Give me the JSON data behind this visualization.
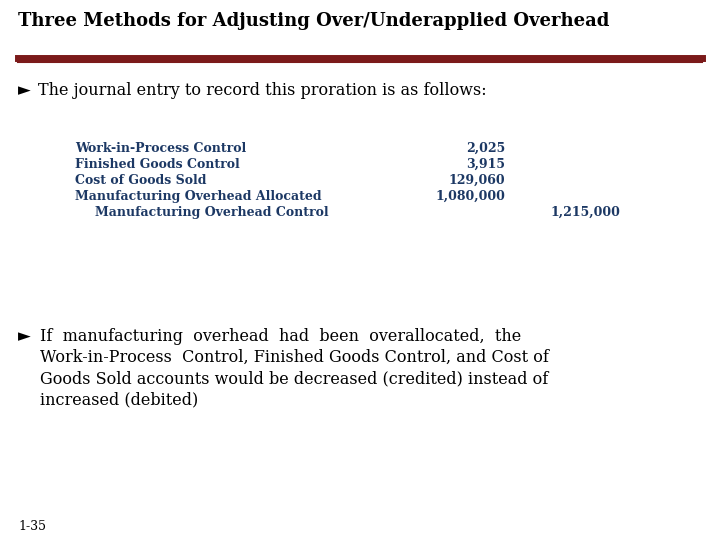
{
  "title": "Three Methods for Adjusting Over/Underapplied Overhead",
  "bg_color": "#ffffff",
  "rule_color": "#7B1A1A",
  "bullet1": "The journal entry to record this proration is as follows:",
  "journal_entries": [
    {
      "account": "Work-in-Process Control",
      "debit": "2,025",
      "credit": "",
      "indent": false
    },
    {
      "account": "Finished Goods Control",
      "debit": "3,915",
      "credit": "",
      "indent": false
    },
    {
      "account": "Cost of Goods Sold",
      "debit": "129,060",
      "credit": "",
      "indent": false
    },
    {
      "account": "Manufacturing Overhead Allocated",
      "debit": "1,080,000",
      "credit": "",
      "indent": false
    },
    {
      "account": "Manufacturing Overhead Control",
      "debit": "",
      "credit": "1,215,000",
      "indent": true
    }
  ],
  "bullet2_lines": [
    "If  manufacturing  overhead  had  been  overallocated,  the",
    "Work-in-Process  Control, Finished Goods Control, and Cost of",
    "Goods Sold accounts would be decreased (credited) instead of",
    "increased (debited)"
  ],
  "footer": "1-35",
  "title_fontsize": 13,
  "bullet_fontsize": 11.5,
  "journal_fontsize": 9,
  "body_fontsize": 11.5,
  "footer_fontsize": 9,
  "account_color": "#1C3864",
  "text_color": "#000000"
}
